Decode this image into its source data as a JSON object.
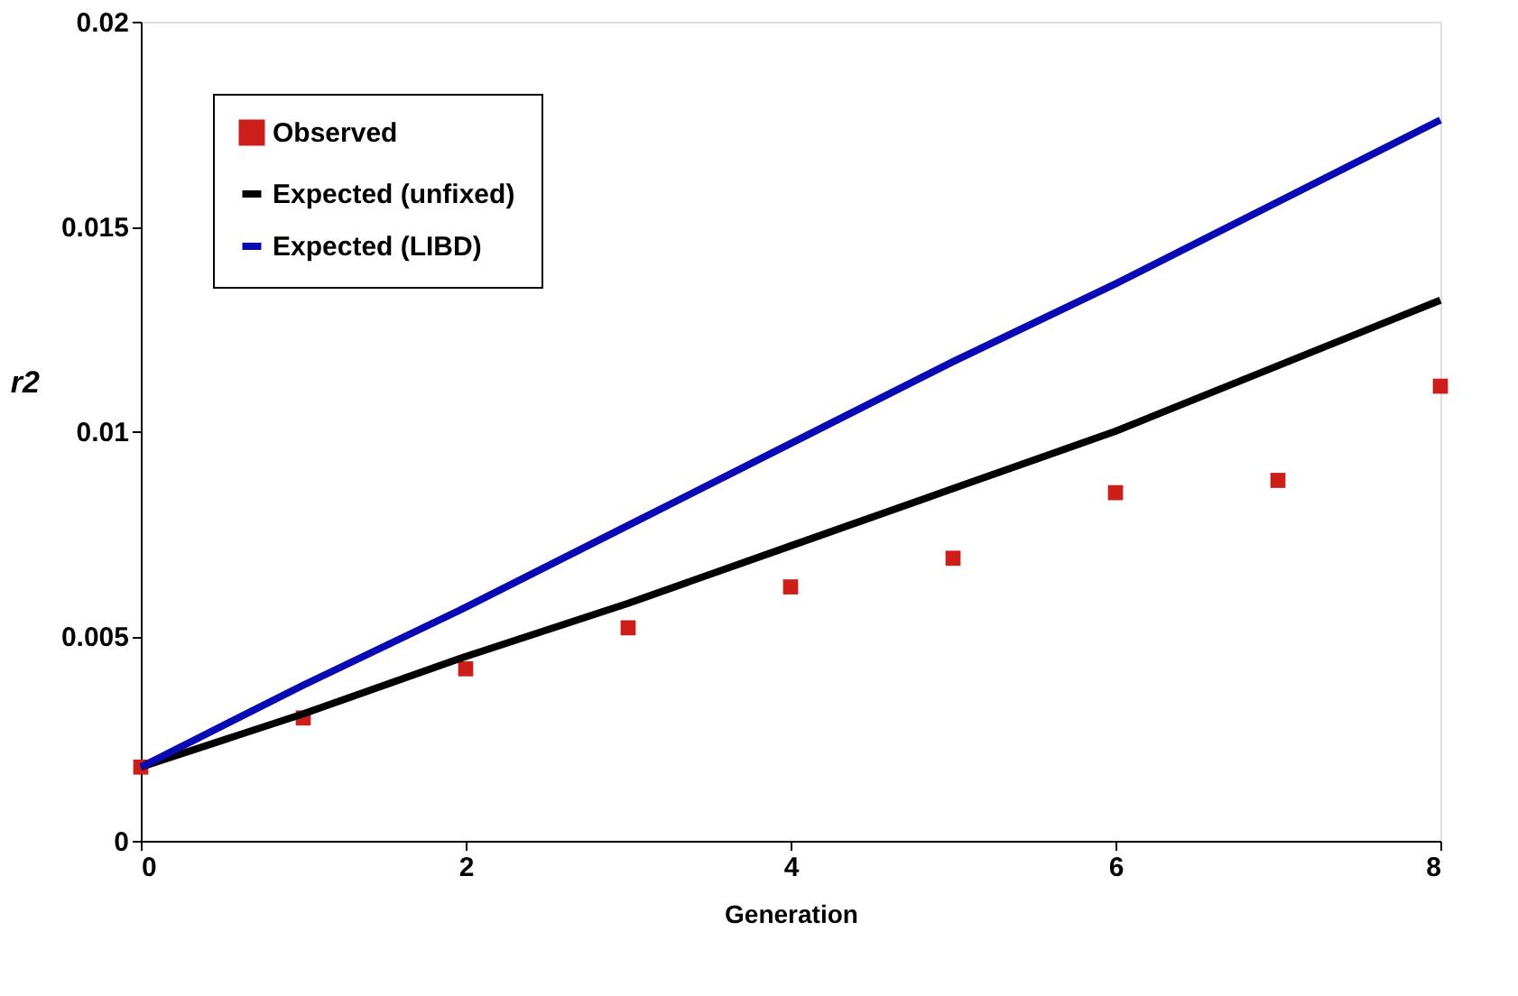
{
  "chart_data": {
    "type": "line",
    "xlabel": "Generation",
    "ylabel": "r2",
    "xlim": [
      0,
      8
    ],
    "xticks": [
      0,
      2,
      4,
      6,
      8
    ],
    "ylim": [
      0,
      0.02
    ],
    "yticks": [
      0,
      0.005,
      0.01,
      0.015,
      0.02
    ],
    "grid": false,
    "legend": "top left",
    "line_style": "solid",
    "x": [
      0,
      1,
      2,
      3,
      4,
      5,
      6,
      7,
      8
    ],
    "series": [
      {
        "name": "Observed",
        "type": "scatter",
        "marker": "square",
        "color": "#cc1f1a",
        "values": [
          0.0018,
          0.003,
          0.0042,
          0.0052,
          0.0062,
          0.0069,
          0.0085,
          0.0088,
          0.0111
        ]
      },
      {
        "name": "Expected (unfixed)",
        "color": "#000000",
        "values": [
          0.0018,
          0.0031,
          0.0045,
          0.0058,
          0.0072,
          0.0086,
          0.01,
          0.0116,
          0.0132
        ]
      },
      {
        "name": "Expected (LIBD)",
        "color": "#0a0ab4",
        "values": [
          0.0018,
          0.0038,
          0.0057,
          0.0077,
          0.0097,
          0.0117,
          0.0136,
          0.0156,
          0.0176
        ]
      }
    ]
  }
}
